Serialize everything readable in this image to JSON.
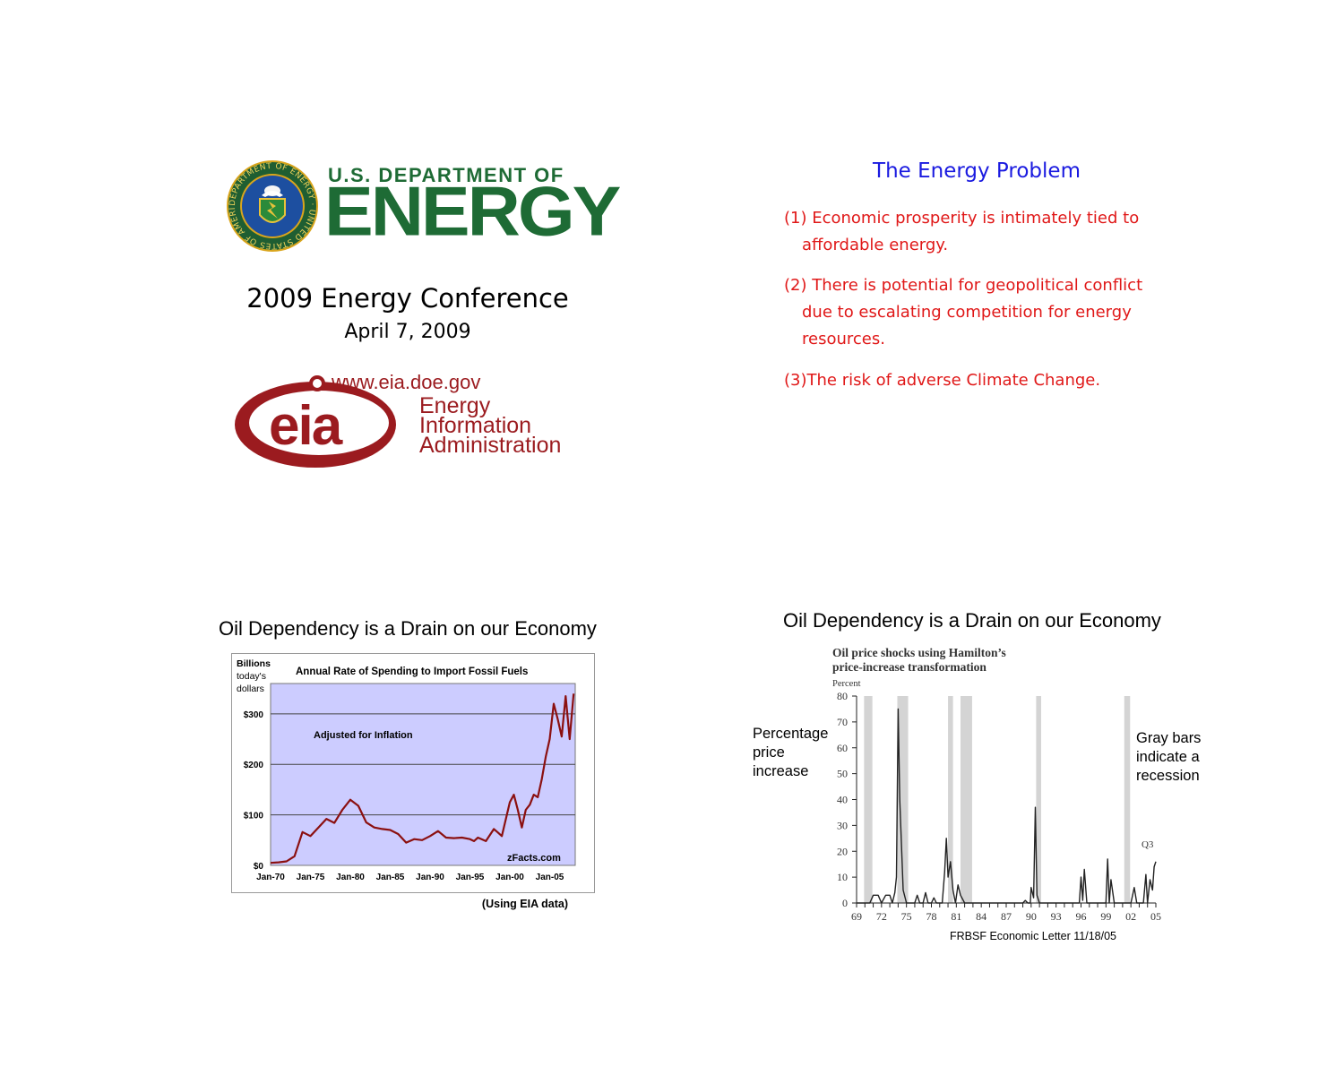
{
  "slide1": {
    "doe_line1": "U.S. DEPARTMENT OF",
    "doe_line2": "ENERGY",
    "seal_ring_text": "DEPARTMENT OF ENERGY · UNITED STATES OF AMERICA",
    "conference_title": "2009 Energy Conference",
    "conference_date": "April 7, 2009",
    "eia_url": "www.eia.doe.gov",
    "eia_logo_text": "eia",
    "eia_name_lines": [
      "Energy",
      "Information",
      "Administration"
    ],
    "colors": {
      "doe_green": "#1e6b35",
      "eia_red": "#9b1b1f"
    }
  },
  "slide2": {
    "title": "The Energy Problem",
    "items": [
      {
        "line1": "(1) Economic prosperity is intimately tied to",
        "line2": "affordable energy."
      },
      {
        "line1": "(2) There is potential for geopolitical conflict",
        "line2": "due to escalating competition for energy",
        "line3": "resources."
      },
      {
        "line1": "(3)The risk of adverse Climate Change."
      }
    ],
    "colors": {
      "title": "#1a1ae0",
      "items": "#e01818"
    }
  },
  "slide3": {
    "title": "Oil Dependency is a Drain on our Economy",
    "source": "(Using EIA data)",
    "chart_data": {
      "type": "line",
      "title": "Annual Rate of Spending to Import Fossil Fuels",
      "ylabel_lines": [
        "Billions",
        "today's",
        "dollars"
      ],
      "annotation": "Adjusted for Inflation",
      "watermark": "zFacts.com",
      "x_tick_labels": [
        "Jan-70",
        "Jan-75",
        "Jan-80",
        "Jan-85",
        "Jan-90",
        "Jan-95",
        "Jan-00",
        "Jan-05"
      ],
      "y_tick_labels": [
        "$0",
        "$100",
        "$200",
        "$300"
      ],
      "y_ticks": [
        0,
        100,
        200,
        300
      ],
      "xlim": [
        1970,
        2008.2
      ],
      "ylim": [
        0,
        360
      ],
      "grid": true,
      "series_color": "#8b1010",
      "plot_bg": "#ccccff",
      "x": [
        1970,
        1971,
        1972,
        1973,
        1974,
        1975,
        1976,
        1977,
        1978,
        1979,
        1980,
        1981,
        1982,
        1983,
        1984,
        1985,
        1986,
        1987,
        1988,
        1989,
        1990,
        1991,
        1992,
        1993,
        1994,
        1995,
        1995.5,
        1996,
        1997,
        1998,
        1998.5,
        1999,
        2000,
        2000.5,
        2001,
        2001.5,
        2002,
        2002.5,
        2003,
        2003.5,
        2004,
        2004.5,
        2005,
        2005.5,
        2006,
        2006.5,
        2007,
        2007.5,
        2008
      ],
      "y": [
        5,
        6,
        8,
        18,
        66,
        58,
        75,
        92,
        84,
        110,
        130,
        118,
        85,
        75,
        72,
        70,
        62,
        45,
        52,
        50,
        58,
        68,
        55,
        54,
        55,
        52,
        48,
        55,
        48,
        72,
        65,
        58,
        125,
        140,
        110,
        75,
        110,
        120,
        140,
        135,
        170,
        215,
        250,
        320,
        290,
        255,
        335,
        250,
        340
      ]
    }
  },
  "slide4": {
    "title": "Oil Dependency is a Drain on our Economy",
    "left_note": [
      "Percentage",
      "price",
      "increase"
    ],
    "right_note": [
      "Gray bars",
      "indicate a",
      "recession"
    ],
    "source": "FRBSF Economic Letter 11/18/05",
    "chart_data": {
      "type": "line",
      "title_lines": [
        "Oil price shocks using Hamilton’s",
        "price-increase transformation"
      ],
      "ylabel": "Percent",
      "annotation": "Q3",
      "x_tick_labels": [
        "69",
        "72",
        "75",
        "78",
        "81",
        "84",
        "87",
        "90",
        "93",
        "96",
        "99",
        "02",
        "05"
      ],
      "y_ticks": [
        0,
        10,
        20,
        30,
        40,
        50,
        60,
        70,
        80
      ],
      "xlim": [
        1969,
        2005
      ],
      "ylim": [
        0,
        80
      ],
      "recession_bars": [
        [
          1969.9,
          1970.9
        ],
        [
          1973.9,
          1975.2
        ],
        [
          1980.0,
          1980.6
        ],
        [
          1981.5,
          1982.9
        ],
        [
          1990.6,
          1991.2
        ],
        [
          2001.2,
          2001.9
        ]
      ],
      "bar_color": "#d4d4d4",
      "series_color": "#222222",
      "x": [
        1969,
        1970,
        1970.3,
        1970.6,
        1971,
        1971.4,
        1971.6,
        1972,
        1972.5,
        1973,
        1973.3,
        1973.6,
        1973.8,
        1974.0,
        1974.2,
        1974.6,
        1975,
        1975.5,
        1976,
        1976.3,
        1976.6,
        1977,
        1977.3,
        1977.6,
        1978,
        1978.3,
        1978.6,
        1979,
        1979.3,
        1979.6,
        1979.8,
        1980.0,
        1980.3,
        1980.6,
        1980.9,
        1981.2,
        1981.5,
        1982,
        1985,
        1988,
        1989,
        1989.3,
        1989.6,
        1989.9,
        1990.0,
        1990.3,
        1990.5,
        1990.7,
        1991.0,
        1991.3,
        1995,
        1995.8,
        1996.0,
        1996.2,
        1996.4,
        1996.7,
        1998.8,
        1999.0,
        1999.2,
        1999.4,
        1999.6,
        2000,
        2001,
        2002,
        2002.4,
        2002.7,
        2003.0,
        2003.5,
        2003.8,
        2004.0,
        2004.3,
        2004.6,
        2004.8,
        2005.0
      ],
      "y": [
        0,
        0,
        0,
        0,
        3,
        3,
        3,
        0,
        3,
        3,
        0,
        4,
        10,
        75,
        40,
        5,
        0,
        0,
        0,
        3,
        0,
        0,
        4,
        0,
        0,
        2,
        0,
        0,
        0,
        12,
        25,
        10,
        16,
        5,
        0,
        7,
        3,
        0,
        0,
        0,
        0,
        1,
        0,
        0,
        6,
        2,
        37,
        3,
        0,
        0,
        0,
        0,
        10,
        1,
        13,
        0,
        0,
        0,
        17,
        0,
        9,
        0,
        0,
        0,
        6,
        0,
        0,
        0,
        11,
        0,
        9,
        5,
        14,
        16
      ]
    }
  }
}
